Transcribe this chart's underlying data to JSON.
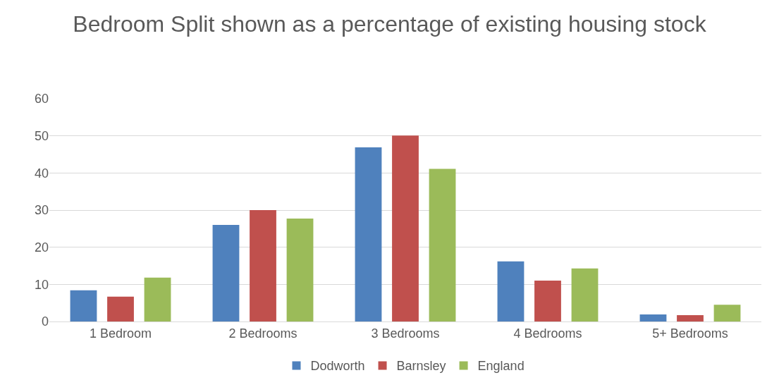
{
  "chart_data": {
    "type": "bar",
    "title": "Bedroom Split shown as a percentage of existing housing stock",
    "categories": [
      "1 Bedroom",
      "2 Bedrooms",
      "3 Bedrooms",
      "4 Bedrooms",
      "5+ Bedrooms"
    ],
    "series": [
      {
        "name": "Dodworth",
        "color": "#4f81bd",
        "values": [
          8.4,
          26.0,
          46.9,
          16.2,
          1.9
        ]
      },
      {
        "name": "Barnsley",
        "color": "#c0504d",
        "values": [
          6.7,
          30.0,
          50.1,
          11.0,
          1.7
        ]
      },
      {
        "name": "England",
        "color": "#9bbb59",
        "values": [
          11.8,
          27.7,
          41.1,
          14.3,
          4.5
        ]
      }
    ],
    "ylim": [
      0,
      60
    ],
    "yticks": [
      0,
      10,
      20,
      30,
      40,
      50,
      60
    ],
    "grid": "y",
    "legend": "bottom"
  }
}
